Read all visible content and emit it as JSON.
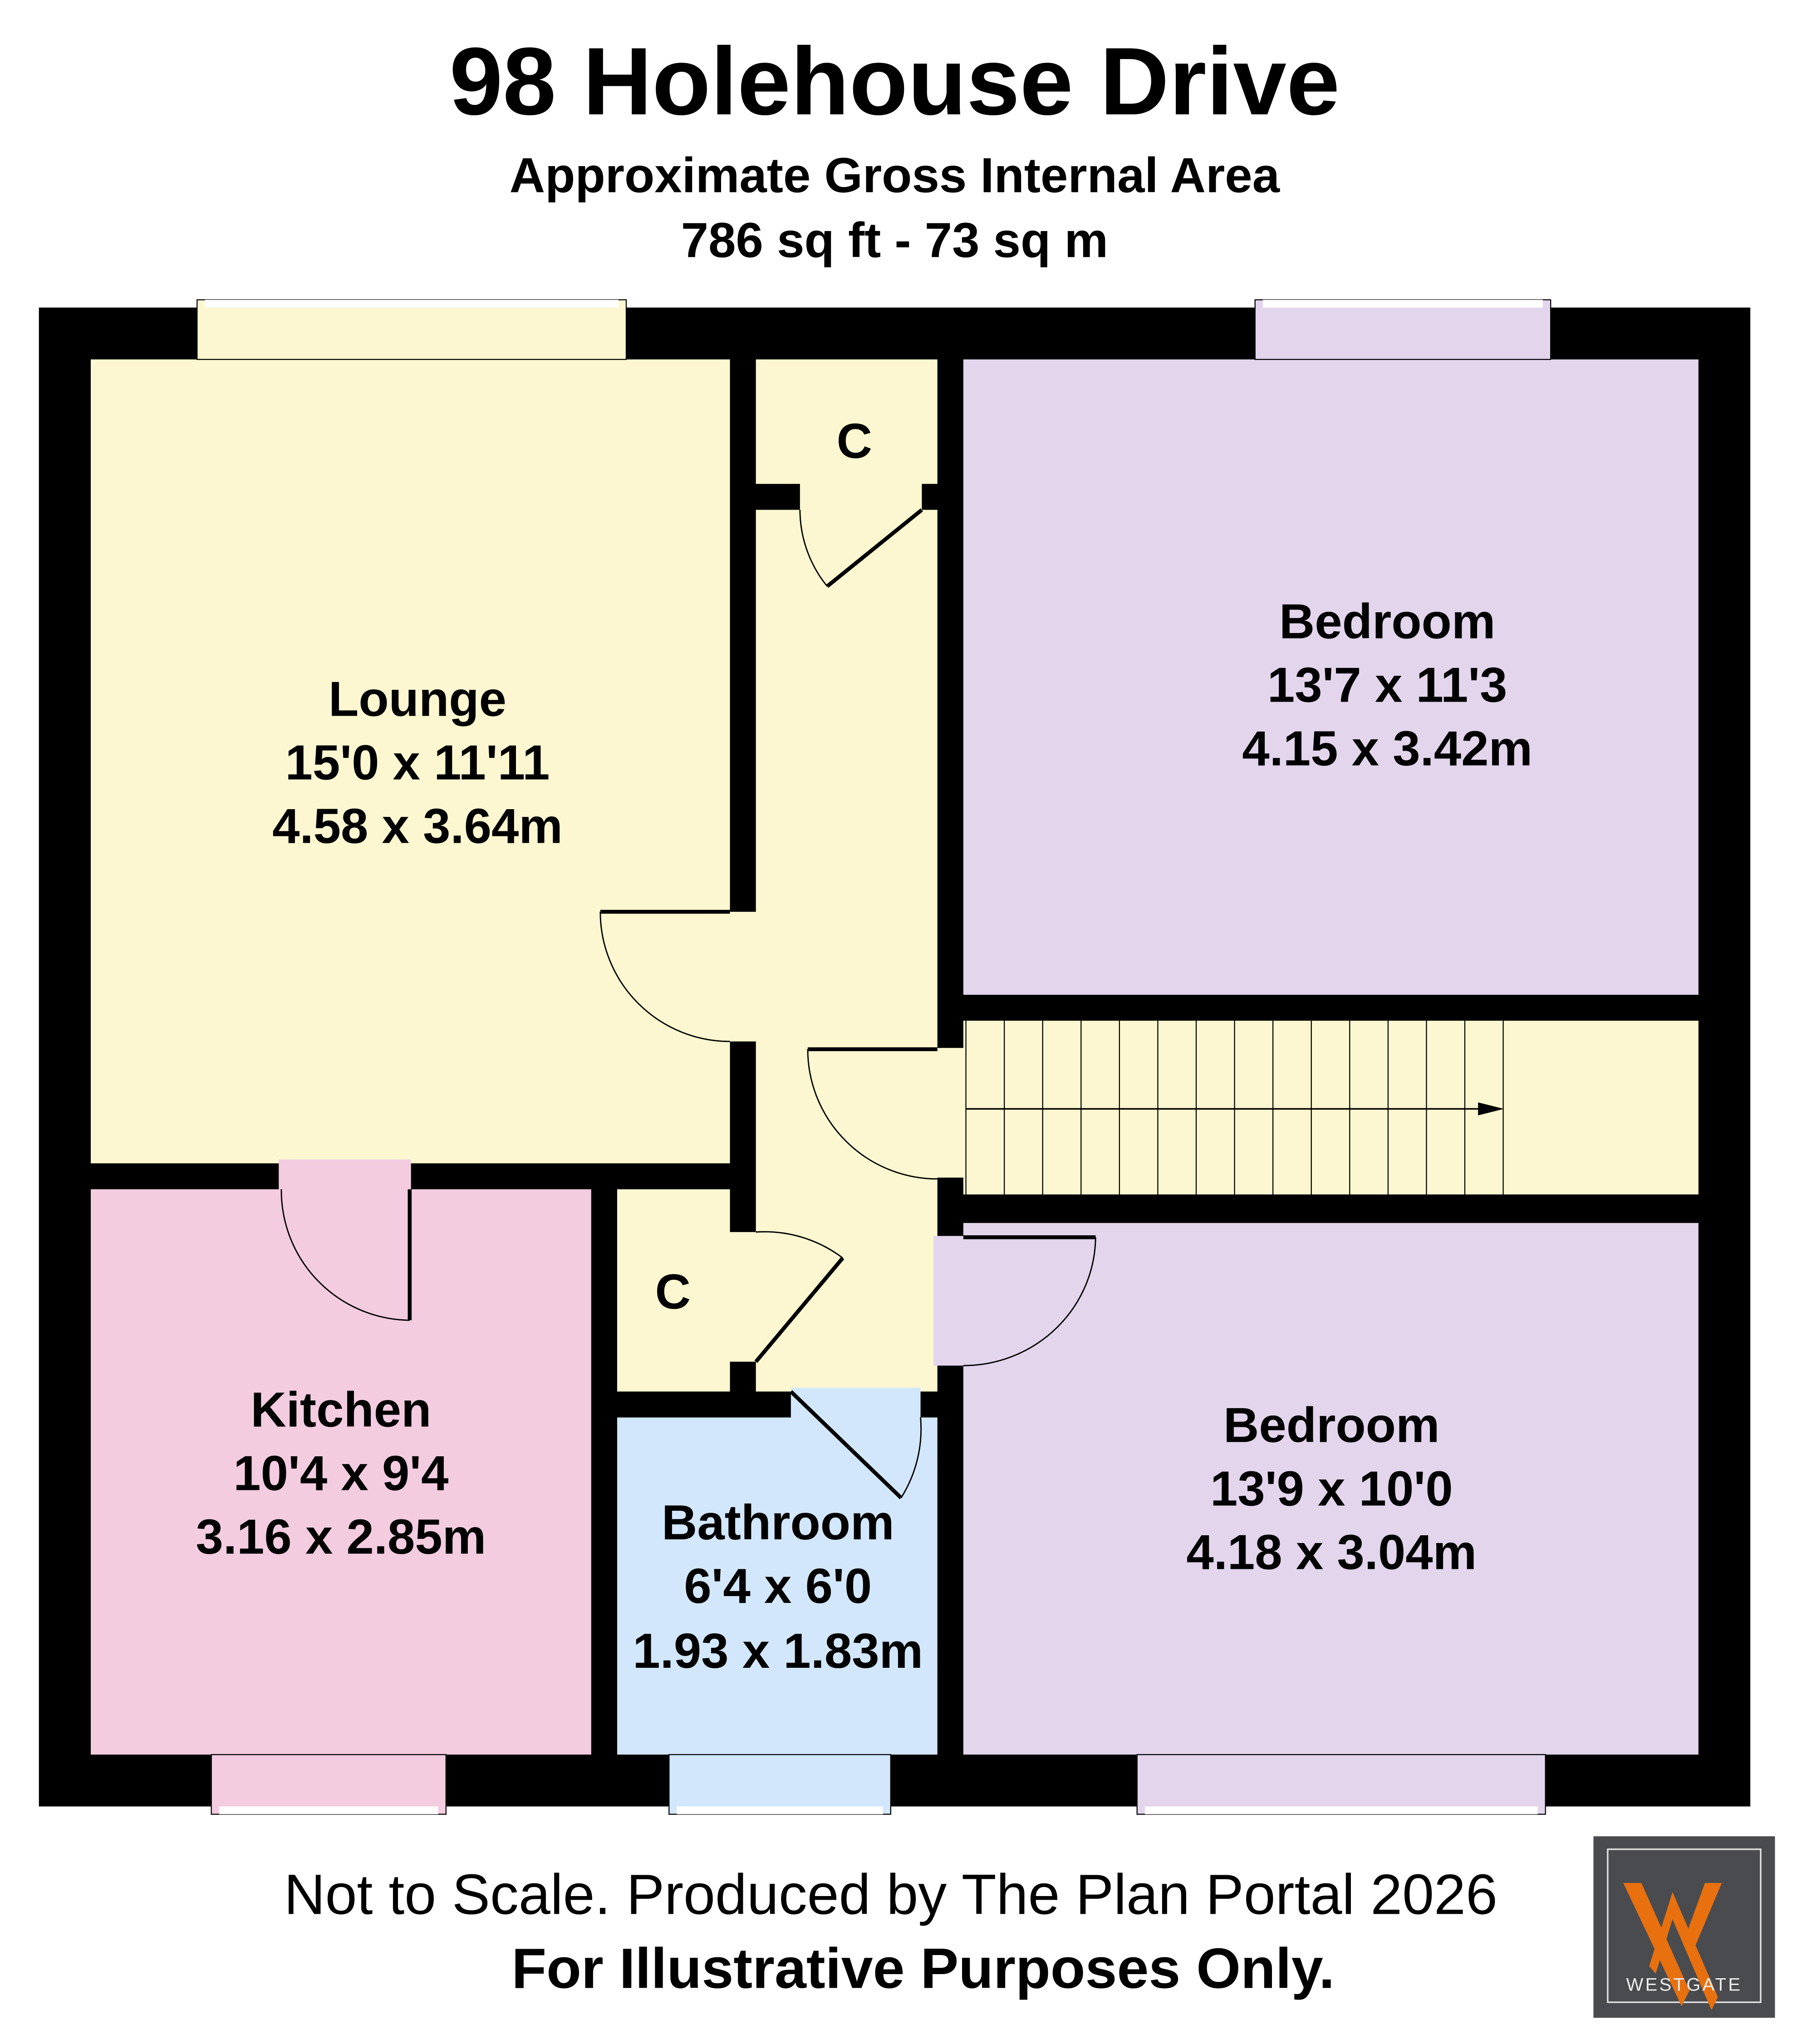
{
  "header": {
    "title": "98 Holehouse Drive",
    "subtitle": "Approximate Gross Internal Area",
    "area": "786 sq ft - 73 sq m"
  },
  "rooms": {
    "lounge": {
      "name": "Lounge",
      "imperial": "15'0 x 11'11",
      "metric": "4.58 x 3.64m"
    },
    "bedroom1": {
      "name": "Bedroom",
      "imperial": "13'7 x 11'3",
      "metric": "4.15 x 3.42m"
    },
    "kitchen": {
      "name": "Kitchen",
      "imperial": "10'4 x 9'4",
      "metric": "3.16 x 2.85m"
    },
    "bathroom": {
      "name": "Bathroom",
      "imperial": "6'4 x 6'0",
      "metric": "1.93 x 1.83m"
    },
    "bedroom2": {
      "name": "Bedroom",
      "imperial": "13'9 x 10'0",
      "metric": "4.18 x 3.04m"
    },
    "cupboard1": {
      "name": "C"
    },
    "cupboard2": {
      "name": "C"
    }
  },
  "footer": {
    "line1": "Not to Scale. Produced by The Plan Portal 2026",
    "line2": "For Illustrative Purposes Only."
  },
  "logo": {
    "text": "WESTGATE",
    "background": "#4a4b4f",
    "accent": "#e8700f"
  },
  "colors": {
    "lounge_hall": "#fcf7d0",
    "bedroom": "#e2d5ec",
    "kitchen": "#f3cce0",
    "bathroom": "#d2e7fb",
    "wall": "#000000"
  }
}
